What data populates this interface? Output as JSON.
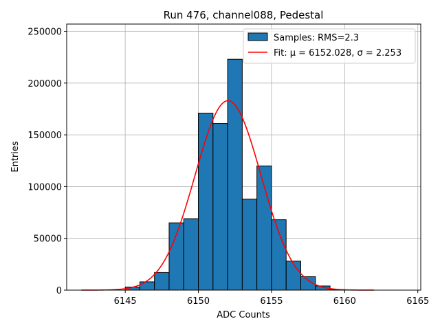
{
  "chart_data": {
    "type": "bar",
    "title": "Run 476, channel088, Pedestal",
    "xlabel": "ADC Counts",
    "ylabel": "Entries",
    "xlim": [
      6141.0,
      6165.2
    ],
    "ylim": [
      0,
      257000
    ],
    "xticks": [
      6145,
      6150,
      6155,
      6160,
      6165
    ],
    "yticks": [
      0,
      50000,
      100000,
      150000,
      200000,
      250000
    ],
    "grid": true,
    "legend_position": "top-right",
    "bar_color": "#1f77b4",
    "fit_color": "#ff0000",
    "bins": [
      {
        "x0": 6145,
        "x1": 6146,
        "value": 3000
      },
      {
        "x0": 6146,
        "x1": 6147,
        "value": 8000
      },
      {
        "x0": 6147,
        "x1": 6148,
        "value": 17000
      },
      {
        "x0": 6148,
        "x1": 6149,
        "value": 65000
      },
      {
        "x0": 6149,
        "x1": 6150,
        "value": 69000
      },
      {
        "x0": 6150,
        "x1": 6151,
        "value": 171000
      },
      {
        "x0": 6151,
        "x1": 6152,
        "value": 161000
      },
      {
        "x0": 6152,
        "x1": 6153,
        "value": 223000
      },
      {
        "x0": 6153,
        "x1": 6154,
        "value": 88000
      },
      {
        "x0": 6154,
        "x1": 6155,
        "value": 120000
      },
      {
        "x0": 6155,
        "x1": 6156,
        "value": 68000
      },
      {
        "x0": 6156,
        "x1": 6157,
        "value": 28000
      },
      {
        "x0": 6157,
        "x1": 6158,
        "value": 13000
      },
      {
        "x0": 6158,
        "x1": 6159,
        "value": 4000
      },
      {
        "x0": 6159,
        "x1": 6160,
        "value": 500
      }
    ],
    "fit": {
      "mu": 6152.028,
      "sigma": 2.253,
      "amplitude": 183000,
      "x_range": [
        6142,
        6162
      ]
    },
    "legend": [
      {
        "label": "Samples: RMS=2.3",
        "kind": "patch"
      },
      {
        "label": "Fit: μ = 6152.028, σ = 2.253",
        "kind": "line"
      }
    ]
  }
}
